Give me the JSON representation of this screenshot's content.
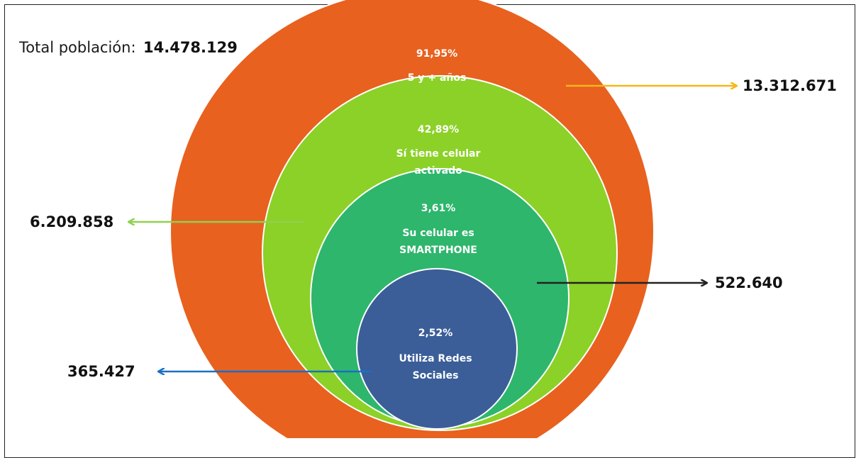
{
  "total": {
    "label": "Total población:",
    "value": "14.478.129"
  },
  "levels": [
    {
      "percent": "91,95%",
      "line1": "5 y + años",
      "line2": "",
      "value": "13.312.671",
      "color": "#e8611f",
      "arrow_color": "#f5b719"
    },
    {
      "percent": "42,89%",
      "line1": "Sí tiene celular",
      "line2": "activado",
      "value": "6.209.858",
      "color": "#8cd127",
      "arrow_color": "#8fd14f"
    },
    {
      "percent": "3,61%",
      "line1": "Su celular es",
      "line2": "SMARTPHONE",
      "value": "522.640",
      "color": "#2eb66c",
      "arrow_color": "#222222"
    },
    {
      "percent": "2,52%",
      "line1": "Utiliza Redes",
      "line2": "Sociales",
      "value": "365.427",
      "color": "#3b5e99",
      "arrow_color": "#1b6fc4"
    }
  ]
}
